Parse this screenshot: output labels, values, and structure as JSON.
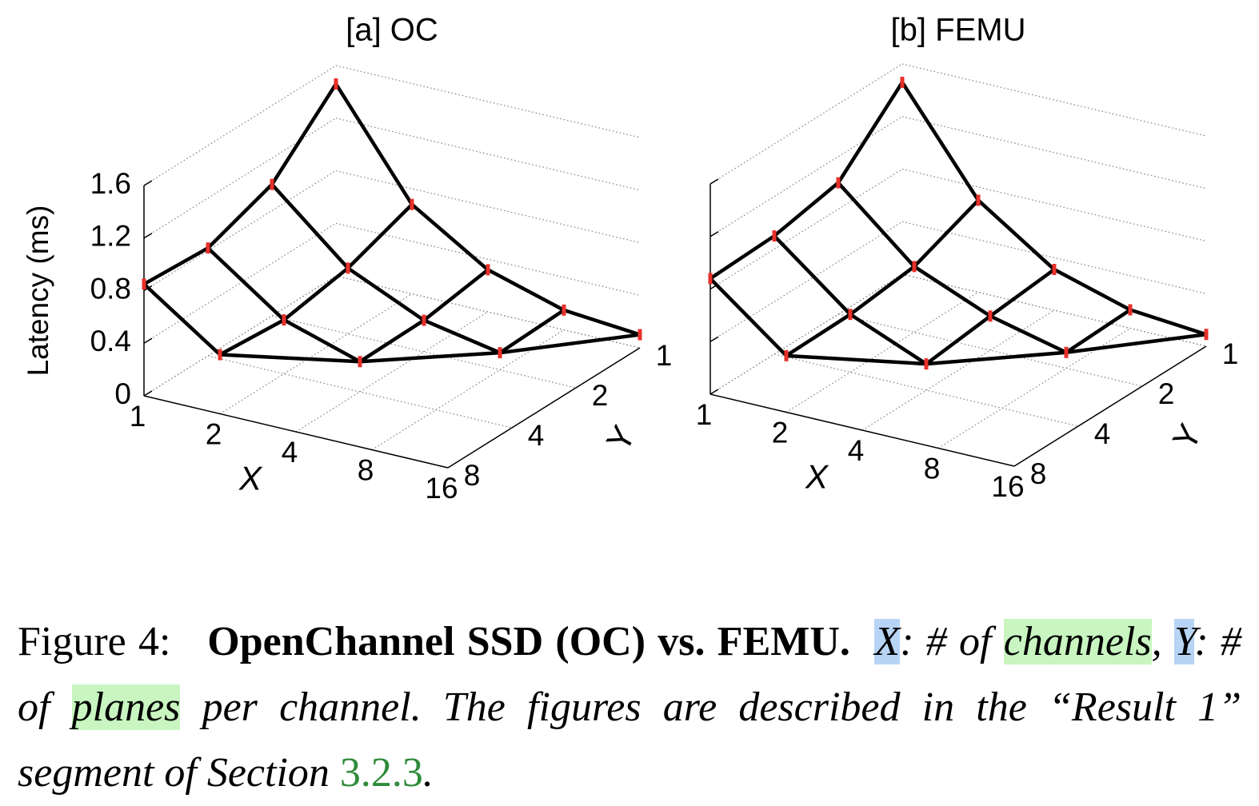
{
  "chart_data": [
    {
      "type": "surface3d",
      "title": "[a] OC",
      "zlabel": "Latency (ms)",
      "xlabel": "X",
      "ylabel": "Y",
      "xticks": [
        1,
        2,
        4,
        8,
        16
      ],
      "yticks": [
        1,
        2,
        4,
        8
      ],
      "zlim": [
        0,
        1.6
      ],
      "zticks": [
        0,
        0.4,
        0.8,
        1.2,
        1.6
      ],
      "ztick_labels": true,
      "color": "#000000",
      "marker_color": "#e8302a",
      "z": [
        [
          1.46,
          1.0,
          0.82,
          0.85
        ],
        [
          0.68,
          0.5,
          0.41,
          0.45
        ],
        [
          0.32,
          0.24,
          0.23,
          null
        ],
        [
          0.15,
          0.13,
          null,
          null
        ],
        [
          0.1,
          null,
          null,
          null
        ]
      ]
    },
    {
      "type": "surface3d",
      "title": "[b] FEMU",
      "xlabel": "X",
      "ylabel": "Y",
      "xticks": [
        1,
        2,
        4,
        8,
        16
      ],
      "yticks": [
        1,
        2,
        4,
        8
      ],
      "zlim": [
        0,
        1.6
      ],
      "zticks": [
        0,
        0.4,
        0.8,
        1.2,
        1.6
      ],
      "ztick_labels": false,
      "color": "#000000",
      "marker_color": "#e8302a",
      "z": [
        [
          1.46,
          1.0,
          0.9,
          0.88
        ],
        [
          0.7,
          0.5,
          0.44,
          0.43
        ],
        [
          0.31,
          0.26,
          0.2,
          null
        ],
        [
          0.14,
          0.12,
          null,
          null
        ],
        [
          0.09,
          null,
          null,
          null
        ]
      ]
    }
  ],
  "caption": {
    "label": "Figure 4:",
    "title": "OpenChannel SSD (OC) vs. FEMU.",
    "segments": [
      {
        "text": "X",
        "style": "blue"
      },
      {
        "text": ": # of ",
        "style": "plain"
      },
      {
        "text": "channels",
        "style": "green"
      },
      {
        "text": ", ",
        "style": "plain"
      },
      {
        "text": "Y",
        "style": "blue"
      },
      {
        "text": ": # of ",
        "style": "plain"
      },
      {
        "text": "planes",
        "style": "green"
      },
      {
        "text": " per channel. The figures are described in the “Result 1” segment of Section ",
        "style": "plain"
      },
      {
        "text": "3.2.3",
        "style": "link"
      },
      {
        "text": ".",
        "style": "plain"
      }
    ]
  }
}
